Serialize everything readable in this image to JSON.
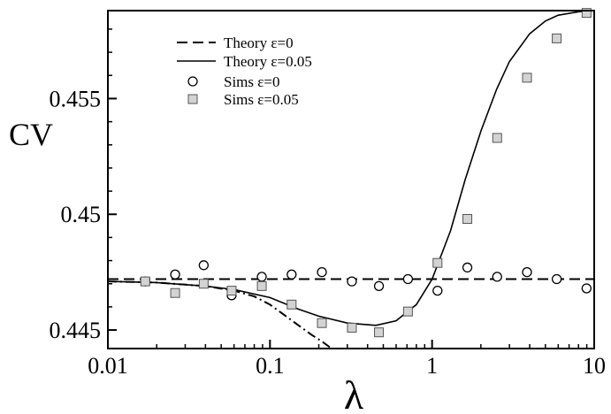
{
  "chart_data": {
    "type": "line",
    "xlabel": "λ",
    "ylabel": "CV",
    "xscale": "log",
    "xlim": [
      0.01,
      10
    ],
    "ylim": [
      0.4442,
      0.4588
    ],
    "grid": false,
    "legend_position": "top-left-inside",
    "xticks": [
      0.01,
      0.1,
      1,
      10
    ],
    "xtick_labels": [
      "0.01",
      "0.1",
      "1",
      "10"
    ],
    "yticks": [
      0.445,
      0.45,
      0.455
    ],
    "ytick_labels": [
      "0.445",
      "0.45",
      "0.455"
    ],
    "series": [
      {
        "name": "Theory ε=0",
        "style": "dashed",
        "color": "#000000",
        "x": [
          0.01,
          10
        ],
        "y": [
          0.4472,
          0.4472
        ]
      },
      {
        "name": "Theory ε=0.05",
        "style": "solid",
        "color": "#000000",
        "x": [
          0.01,
          0.02,
          0.04,
          0.06,
          0.1,
          0.15,
          0.2,
          0.3,
          0.45,
          0.6,
          0.8,
          1.0,
          1.3,
          1.6,
          2.0,
          2.5,
          3.0,
          4.0,
          5.0,
          6.0,
          8.0,
          10.0
        ],
        "y": [
          0.4471,
          0.44705,
          0.4469,
          0.44675,
          0.4464,
          0.4459,
          0.4456,
          0.4453,
          0.4452,
          0.4454,
          0.4461,
          0.4472,
          0.4493,
          0.4515,
          0.4536,
          0.4554,
          0.4566,
          0.4578,
          0.45835,
          0.4586,
          0.45875,
          0.4588
        ]
      },
      {
        "name": "",
        "style": "dashdot",
        "color": "#000000",
        "x": [
          0.01,
          0.02,
          0.04,
          0.06,
          0.08,
          0.1,
          0.12,
          0.15,
          0.18,
          0.21,
          0.24
        ],
        "y": [
          0.4471,
          0.44705,
          0.4469,
          0.4467,
          0.44645,
          0.4461,
          0.4457,
          0.4452,
          0.4448,
          0.4445,
          0.4442
        ]
      },
      {
        "name": "Sims ε=0",
        "marker": "circle",
        "color": "#000000",
        "x": [
          0.017,
          0.026,
          0.039,
          0.058,
          0.089,
          0.136,
          0.209,
          0.32,
          0.47,
          0.71,
          1.08,
          1.65,
          2.52,
          3.85,
          5.87,
          8.97
        ],
        "y": [
          0.4471,
          0.4474,
          0.4478,
          0.4465,
          0.4473,
          0.4474,
          0.4475,
          0.4471,
          0.4469,
          0.4472,
          0.4467,
          0.4477,
          0.4473,
          0.4475,
          0.4472,
          0.4468
        ]
      },
      {
        "name": "Sims ε=0.05",
        "marker": "square",
        "color": "#d3d3d3",
        "x": [
          0.017,
          0.026,
          0.039,
          0.058,
          0.089,
          0.136,
          0.209,
          0.32,
          0.47,
          0.71,
          1.08,
          1.65,
          2.52,
          3.85,
          5.87,
          8.97
        ],
        "y": [
          0.4471,
          0.4466,
          0.447,
          0.4467,
          0.4469,
          0.4461,
          0.4453,
          0.4451,
          0.4449,
          0.4458,
          0.4479,
          0.4498,
          0.4533,
          0.4559,
          0.4576,
          0.4587
        ]
      }
    ]
  }
}
